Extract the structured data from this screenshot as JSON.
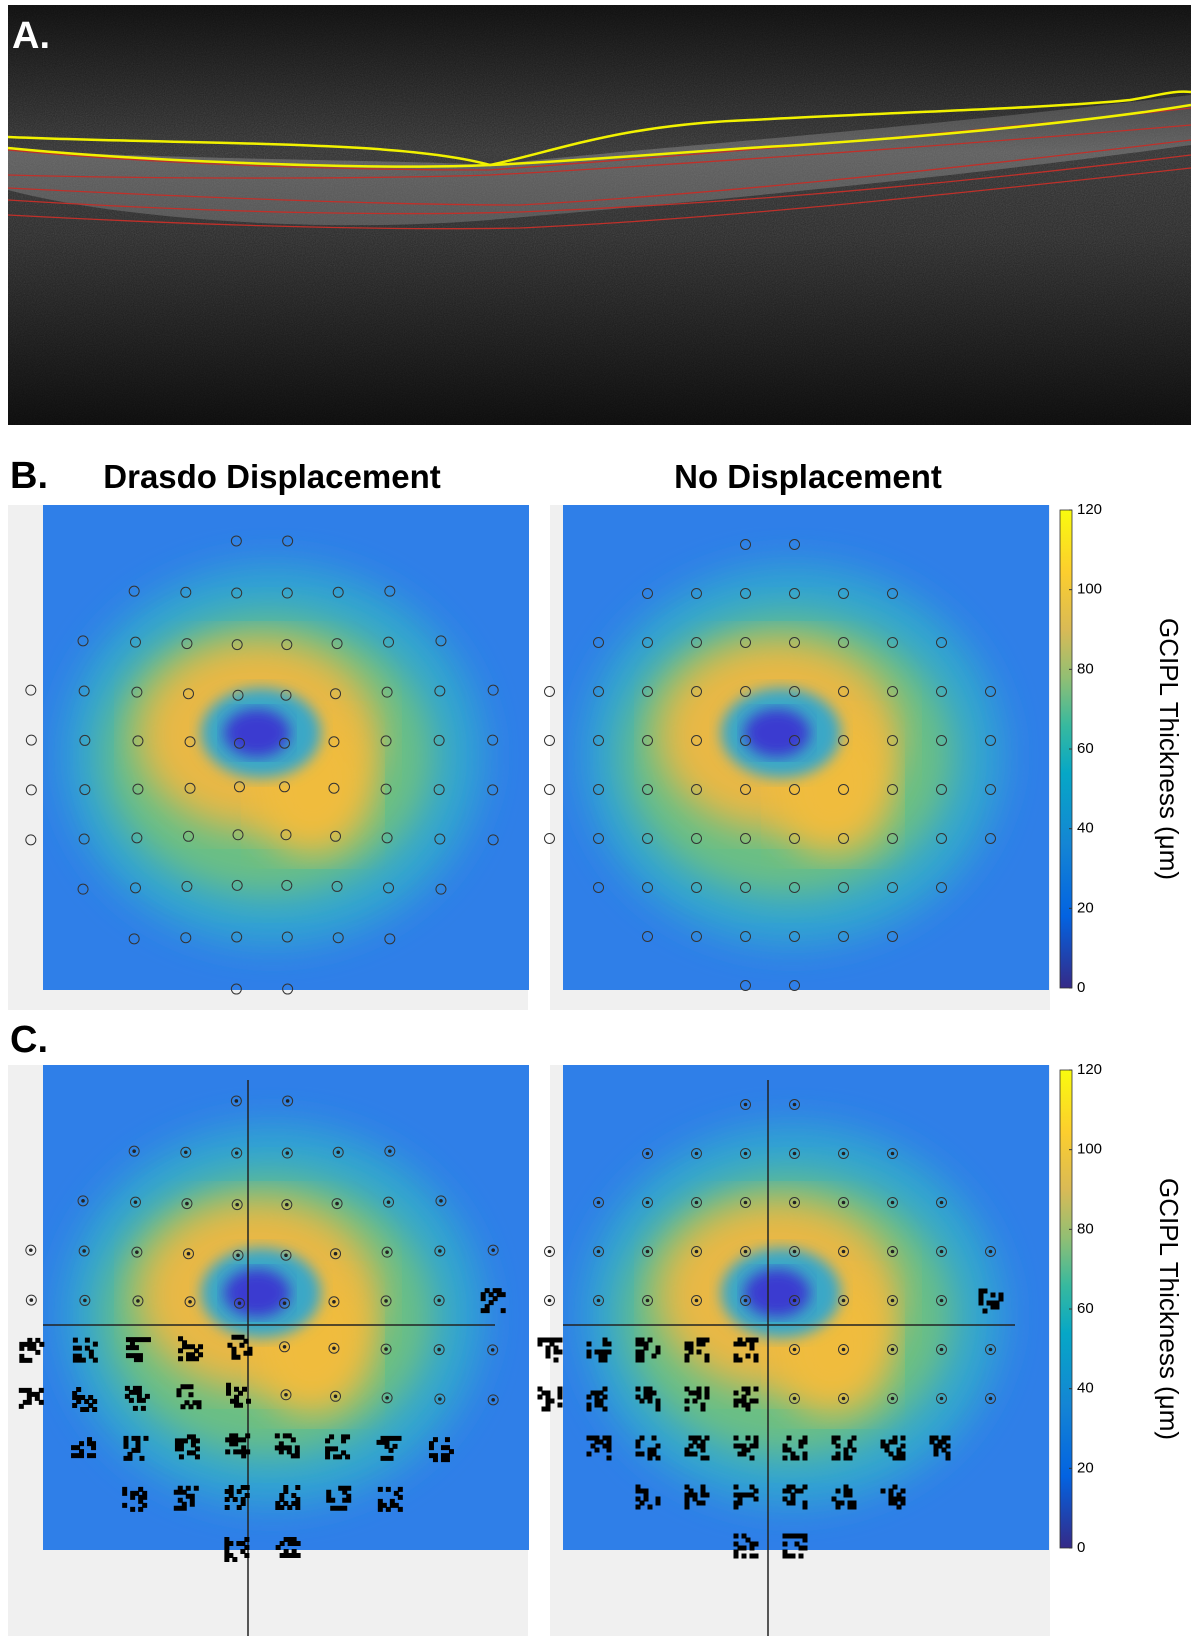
{
  "panels": {
    "a": {
      "label": "A."
    },
    "b": {
      "label": "B.",
      "titles": [
        "Drasdo Displacement",
        "No Displacement"
      ]
    },
    "c": {
      "label": "C."
    }
  },
  "colorbar": {
    "label": "GCIPL Thickness (μm)",
    "lim": [
      0,
      120
    ],
    "ticks": [
      0,
      20,
      40,
      60,
      80,
      100,
      120
    ]
  }
}
